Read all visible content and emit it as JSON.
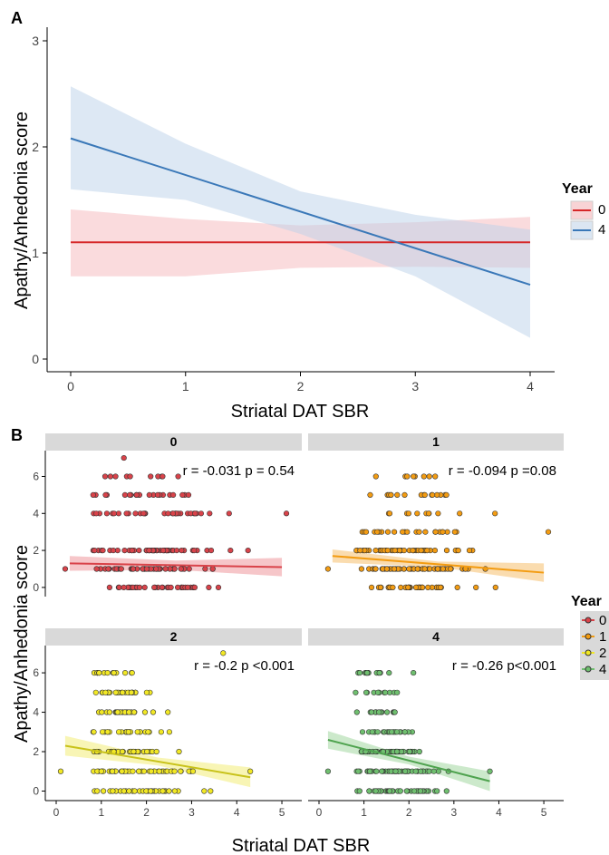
{
  "panel_a": {
    "tag": "A",
    "xlabel": "Striatal DAT SBR",
    "ylabel": "Apathy/Anhedonia score",
    "legend_title": "Year",
    "legend_items": [
      "0",
      "4"
    ]
  },
  "panel_b": {
    "tag": "B",
    "xlabel": "Striatal DAT SBR",
    "ylabel": "Apathy/Anhedonia score",
    "legend_title": "Year",
    "legend_items": [
      "0",
      "1",
      "2",
      "4"
    ]
  },
  "colors": {
    "year0": "#d62728",
    "year4_a": "#3a78b8",
    "year0_b": "#d9434a",
    "year1_b": "#f39c12",
    "year2_b": "#f2e825",
    "year4_b": "#6fbf6f",
    "strip": "#d9d9d9"
  },
  "chart_data": [
    {
      "type": "line",
      "panel": "A",
      "xlim": [
        0,
        4
      ],
      "ylim": [
        0,
        3
      ],
      "x_ticks": [
        "0",
        "1",
        "2",
        "3",
        "4"
      ],
      "y_ticks": [
        "0",
        "1",
        "2",
        "3"
      ],
      "legend_placement": "right",
      "grid": false,
      "series": [
        {
          "name": "0",
          "x": [
            0,
            4
          ],
          "y": [
            1.1,
            1.1
          ],
          "ci_lower": [
            0.78,
            0.78,
            0.86,
            0.87,
            0.86
          ],
          "ci_upper": [
            1.41,
            1.32,
            1.26,
            1.29,
            1.34
          ],
          "ci_x": [
            0,
            1,
            2,
            3,
            4
          ]
        },
        {
          "name": "4",
          "x": [
            0,
            4
          ],
          "y": [
            2.08,
            0.7
          ],
          "ci_lower": [
            1.6,
            1.5,
            1.18,
            0.78,
            0.2
          ],
          "ci_upper": [
            2.57,
            2.03,
            1.58,
            1.36,
            1.22
          ],
          "ci_x": [
            0,
            1,
            2,
            3,
            4
          ]
        }
      ]
    },
    {
      "type": "scatter",
      "panel": "B",
      "facet_strip": "0",
      "annotation": "r = -0.031 p = 0.54",
      "xlim": [
        0,
        5.2
      ],
      "ylim": [
        -0.3,
        7.2
      ],
      "y_ticks": [
        "0",
        "2",
        "4",
        "6"
      ],
      "fit": {
        "x": [
          0.3,
          5.0
        ],
        "y": [
          1.3,
          1.1
        ],
        "ci_half": [
          0.4,
          0.25,
          0.5
        ]
      },
      "points_range": {
        "x": [
          0.2,
          5.1
        ],
        "y": [
          0,
          7
        ]
      }
    },
    {
      "type": "scatter",
      "panel": "B",
      "facet_strip": "1",
      "annotation": "r = -0.094 p =0.08",
      "xlim": [
        0,
        5.2
      ],
      "ylim": [
        -0.3,
        7.2
      ],
      "fit": {
        "x": [
          0.3,
          5.0
        ],
        "y": [
          1.7,
          0.8
        ],
        "ci_half": [
          0.35,
          0.15,
          0.5
        ]
      },
      "points_range": {
        "x": [
          0.2,
          5.1
        ],
        "y": [
          0,
          6
        ]
      }
    },
    {
      "type": "scatter",
      "panel": "B",
      "facet_strip": "2",
      "annotation": "r = -0.2 p <0.001",
      "xlim": [
        0,
        5.2
      ],
      "ylim": [
        -0.3,
        7.2
      ],
      "x_ticks": [
        "0",
        "1",
        "2",
        "3",
        "4",
        "5"
      ],
      "y_ticks": [
        "0",
        "2",
        "4",
        "6"
      ],
      "fit": {
        "x": [
          0.2,
          4.3
        ],
        "y": [
          2.3,
          0.7
        ],
        "ci_half": [
          0.5,
          0.2,
          0.5
        ]
      },
      "points_range": {
        "x": [
          0.1,
          4.3
        ],
        "y": [
          0,
          7
        ]
      }
    },
    {
      "type": "scatter",
      "panel": "B",
      "facet_strip": "4",
      "annotation": "r = -0.26 p<0.001",
      "xlim": [
        0,
        5.2
      ],
      "ylim": [
        -0.3,
        7.2
      ],
      "x_ticks": [
        "0",
        "1",
        "2",
        "3",
        "4",
        "5"
      ],
      "fit": {
        "x": [
          0.2,
          3.8
        ],
        "y": [
          2.6,
          0.5
        ],
        "ci_half": [
          0.45,
          0.2,
          0.5
        ]
      },
      "points_range": {
        "x": [
          0.2,
          3.8
        ],
        "y": [
          0,
          6
        ]
      }
    }
  ]
}
